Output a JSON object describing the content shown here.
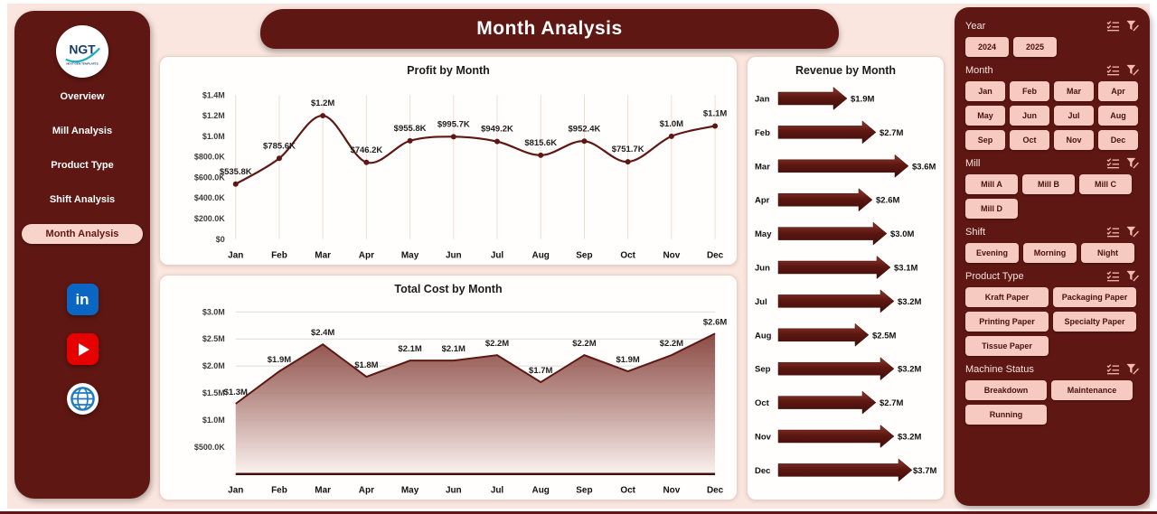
{
  "app": {
    "title": "Month Analysis"
  },
  "theme": {
    "maroon": "#5E1712",
    "maroon_dark": "#40100B",
    "pink_bg": "#FAE6DE",
    "pink_button": "#F6C9C1",
    "pink_icon": "#F3BBB1",
    "grid_pink": "#F3DBD0",
    "grid_gray": "#DCDCDC",
    "linkedin_blue": "#0A66C2",
    "youtube_red": "#E60000"
  },
  "sidebar": {
    "logo": {
      "text": "NGT",
      "subtext": "NEXT GEN TEMPLATES"
    },
    "items": [
      {
        "label": "Overview",
        "active": false
      },
      {
        "label": "Mill Analysis",
        "active": false
      },
      {
        "label": "Product Type",
        "active": false
      },
      {
        "label": "Shift Analysis",
        "active": false
      },
      {
        "label": "Month Analysis",
        "active": true
      }
    ],
    "social": [
      {
        "name": "linkedin"
      },
      {
        "name": "youtube"
      },
      {
        "name": "website"
      }
    ]
  },
  "chart_data": [
    {
      "type": "line",
      "title": "Profit by Month",
      "categories": [
        "Jan",
        "Feb",
        "Mar",
        "Apr",
        "May",
        "Jun",
        "Jul",
        "Aug",
        "Sep",
        "Oct",
        "Nov",
        "Dec"
      ],
      "values": [
        535800,
        785600,
        1200000,
        746200,
        955800,
        995700,
        949200,
        815600,
        952400,
        751700,
        1000000,
        1100000
      ],
      "labels": [
        "$535.8K",
        "$785.6K",
        "$1.2M",
        "$746.2K",
        "$955.8K",
        "$995.7K",
        "$949.2K",
        "$815.6K",
        "$952.4K",
        "$751.7K",
        "$1.0M",
        "$1.1M"
      ],
      "ylim": [
        0,
        1400000
      ],
      "y_ticks": [
        {
          "v": 0,
          "label": "$0"
        },
        {
          "v": 200000,
          "label": "$200.0K"
        },
        {
          "v": 400000,
          "label": "$400.0K"
        },
        {
          "v": 600000,
          "label": "$600.0K"
        },
        {
          "v": 800000,
          "label": "$800.0K"
        },
        {
          "v": 1000000,
          "label": "$1.0M"
        },
        {
          "v": 1200000,
          "label": "$1.2M"
        },
        {
          "v": 1400000,
          "label": "$1.4M"
        }
      ],
      "grid": "vertical",
      "legend": "none"
    },
    {
      "type": "area",
      "title": "Total Cost by Month",
      "categories": [
        "Jan",
        "Feb",
        "Mar",
        "Apr",
        "May",
        "Jun",
        "Jul",
        "Aug",
        "Sep",
        "Oct",
        "Nov",
        "Dec"
      ],
      "values": [
        1300000,
        1900000,
        2400000,
        1800000,
        2100000,
        2100000,
        2200000,
        1700000,
        2200000,
        1900000,
        2200000,
        2600000
      ],
      "labels": [
        "$1.3M",
        "$1.9M",
        "$2.4M",
        "$1.8M",
        "$2.1M",
        "$2.1M",
        "$2.2M",
        "$1.7M",
        "$2.2M",
        "$1.9M",
        "$2.2M",
        "$2.6M"
      ],
      "ylim": [
        0,
        3000000
      ],
      "y_ticks": [
        {
          "v": 500000,
          "label": "$500.0K"
        },
        {
          "v": 1000000,
          "label": "$1.0M"
        },
        {
          "v": 1500000,
          "label": "$1.5M"
        },
        {
          "v": 2000000,
          "label": "$2.0M"
        },
        {
          "v": 2500000,
          "label": "$2.5M"
        },
        {
          "v": 3000000,
          "label": "$3.0M"
        }
      ],
      "grid": "horizontal",
      "legend": "none"
    },
    {
      "type": "bar",
      "title": "Revenue by Month",
      "orientation": "horizontal-arrows",
      "categories": [
        "Jan",
        "Feb",
        "Mar",
        "Apr",
        "May",
        "Jun",
        "Jul",
        "Aug",
        "Sep",
        "Oct",
        "Nov",
        "Dec"
      ],
      "values": [
        1900000,
        2700000,
        3600000,
        2600000,
        3000000,
        3100000,
        3200000,
        2500000,
        3200000,
        2700000,
        3200000,
        3700000
      ],
      "labels": [
        "$1.9M",
        "$2.7M",
        "$3.6M",
        "$2.6M",
        "$3.0M",
        "$3.1M",
        "$3.2M",
        "$2.5M",
        "$3.2M",
        "$2.7M",
        "$3.2M",
        "$3.7M"
      ],
      "xmax": 3700000,
      "legend": "none"
    }
  ],
  "filters": {
    "sections": [
      {
        "label": "Year",
        "btn_width": 48,
        "options": [
          "2024",
          "2025"
        ]
      },
      {
        "label": "Month",
        "btn_width": 44,
        "options": [
          "Jan",
          "Feb",
          "Mar",
          "Apr",
          "May",
          "Jun",
          "Jul",
          "Aug",
          "Sep",
          "Oct",
          "Nov",
          "Dec"
        ]
      },
      {
        "label": "Mill",
        "btn_width": 58,
        "options": [
          "Mill A",
          "Mill B",
          "Mill C",
          "Mill D"
        ]
      },
      {
        "label": "Shift",
        "btn_width": 59,
        "options": [
          "Evening",
          "Morning",
          "Night"
        ]
      },
      {
        "label": "Product Type",
        "btn_width": 92,
        "options": [
          "Kraft Paper",
          "Packaging Paper",
          "Printing Paper",
          "Specialty Paper",
          "Tissue Paper"
        ]
      },
      {
        "label": "Machine Status",
        "btn_width": 90,
        "options": [
          "Breakdown",
          "Maintenance",
          "Running"
        ]
      }
    ]
  }
}
